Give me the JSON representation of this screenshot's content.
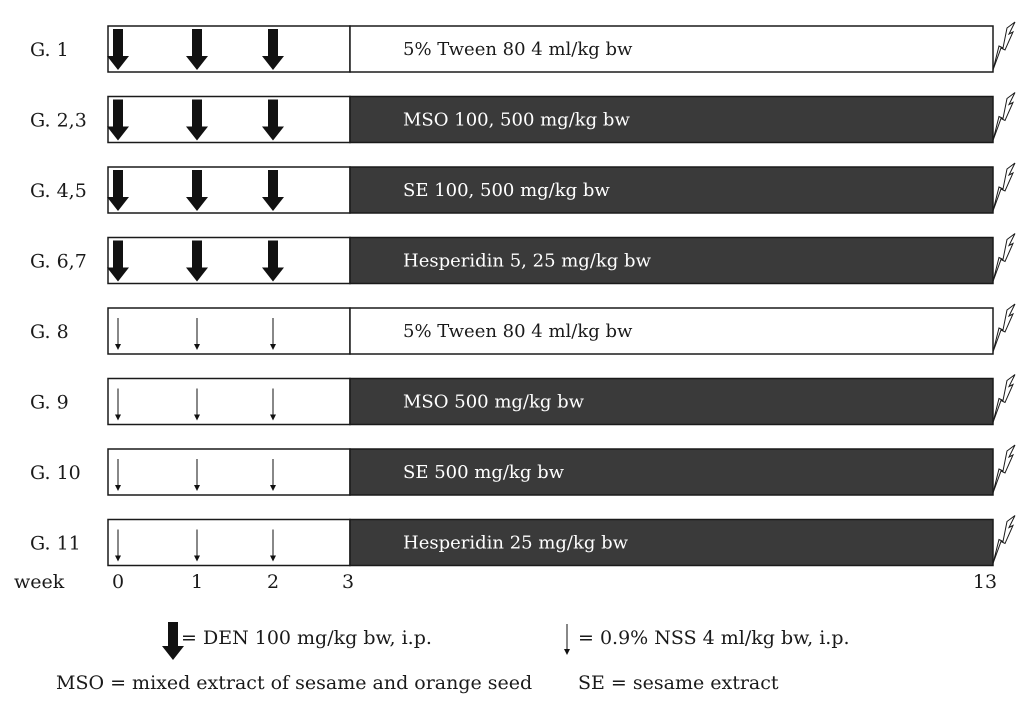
{
  "groups": [
    {
      "label": "G. 1",
      "treatment": "5% Tween 80 4 ml/kg bw",
      "induction": "DEN",
      "treatment_fill": "white"
    },
    {
      "label": "G. 2,3",
      "treatment": "MSO 100, 500 mg/kg bw",
      "induction": "DEN",
      "treatment_fill": "dark"
    },
    {
      "label": "G. 4,5",
      "treatment": "SE 100, 500 mg/kg bw",
      "induction": "DEN",
      "treatment_fill": "dark"
    },
    {
      "label": "G. 6,7",
      "treatment": "Hesperidin 5, 25 mg/kg bw",
      "induction": "DEN",
      "treatment_fill": "dark"
    },
    {
      "label": "G. 8",
      "treatment": "5% Tween 80 4 ml/kg bw",
      "induction": "NSS",
      "treatment_fill": "white"
    },
    {
      "label": "G. 9",
      "treatment": "MSO 500 mg/kg bw",
      "induction": "NSS",
      "treatment_fill": "dark"
    },
    {
      "label": "G. 10",
      "treatment": "SE 500 mg/kg bw",
      "induction": "NSS",
      "treatment_fill": "dark"
    },
    {
      "label": "G. 11",
      "treatment": "Hesperidin 25 mg/kg bw",
      "induction": "NSS",
      "treatment_fill": "dark"
    }
  ],
  "timeline": {
    "axis_label": "week",
    "ticks": [
      0,
      1,
      2,
      3,
      13
    ],
    "dose_weeks": [
      0,
      1,
      2
    ],
    "treatment_start_week": 3,
    "end_week": 13
  },
  "legend": {
    "den": "= DEN 100 mg/kg bw, i.p.",
    "nss": "= 0.9% NSS 4 ml/kg bw, i.p.",
    "mso": "MSO = mixed extract of sesame and orange seed",
    "se": "SE = sesame extract"
  },
  "colors": {
    "dark_fill": "#3a3a3a",
    "dark_text": "#ffffff",
    "light_text": "#1a1a1a",
    "stroke": "#1a1a1a"
  }
}
